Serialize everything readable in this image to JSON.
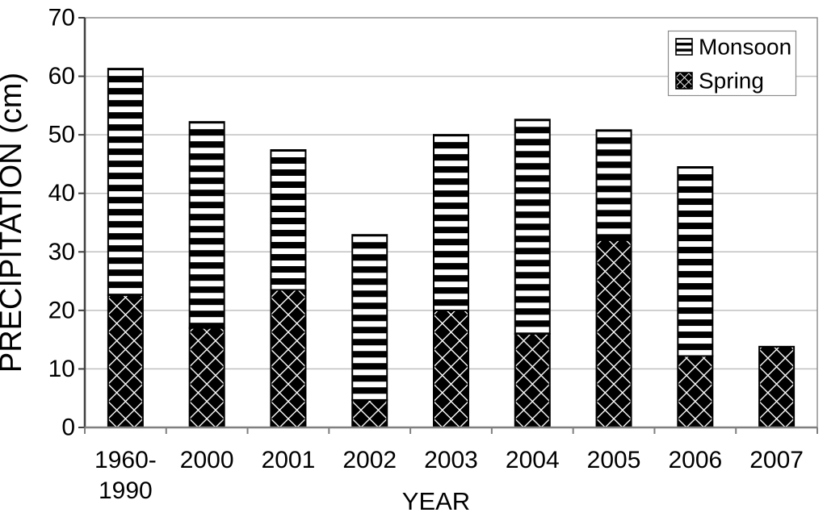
{
  "chart_data": {
    "type": "bar",
    "stacked": true,
    "title": "",
    "xlabel": "YEAR",
    "ylabel": "PRECIPITATION (cm)",
    "ylim": [
      0,
      70
    ],
    "yticks": [
      0,
      10,
      20,
      30,
      40,
      50,
      60,
      70
    ],
    "grid": true,
    "categories": [
      "1960-1990",
      "2000",
      "2001",
      "2002",
      "2003",
      "2004",
      "2005",
      "2006",
      "2007"
    ],
    "category_display_lines": [
      [
        "1960-",
        "1990"
      ],
      [
        "2000"
      ],
      [
        "2001"
      ],
      [
        "2002"
      ],
      [
        "2003"
      ],
      [
        "2004"
      ],
      [
        "2005"
      ],
      [
        "2006"
      ],
      [
        "2007"
      ]
    ],
    "series": [
      {
        "name": "Spring",
        "pattern": "diamond",
        "values": [
          22.6,
          17.0,
          23.5,
          4.7,
          20.0,
          16.0,
          32.0,
          12.2,
          13.8
        ]
      },
      {
        "name": "Monsoon",
        "pattern": "hstripe",
        "values": [
          38.7,
          35.2,
          23.9,
          28.2,
          30.0,
          36.6,
          18.8,
          32.3,
          0
        ]
      }
    ],
    "stack_totals": [
      61.3,
      52.2,
      47.4,
      32.9,
      50.0,
      52.6,
      50.8,
      44.5,
      13.8
    ],
    "legend": {
      "position": "top-right",
      "entries": [
        {
          "label": "Monsoon",
          "pattern": "hstripe"
        },
        {
          "label": "Spring",
          "pattern": "diamond"
        }
      ]
    },
    "colors": {
      "foreground": "#000000",
      "background": "#ffffff",
      "gridline": "#c0c0c0",
      "plot_border": "#808080",
      "axis_left": "#404040",
      "axis_bottom": "#808080",
      "bar_border": "#000000",
      "legend_border": "#8c8c8c"
    }
  }
}
